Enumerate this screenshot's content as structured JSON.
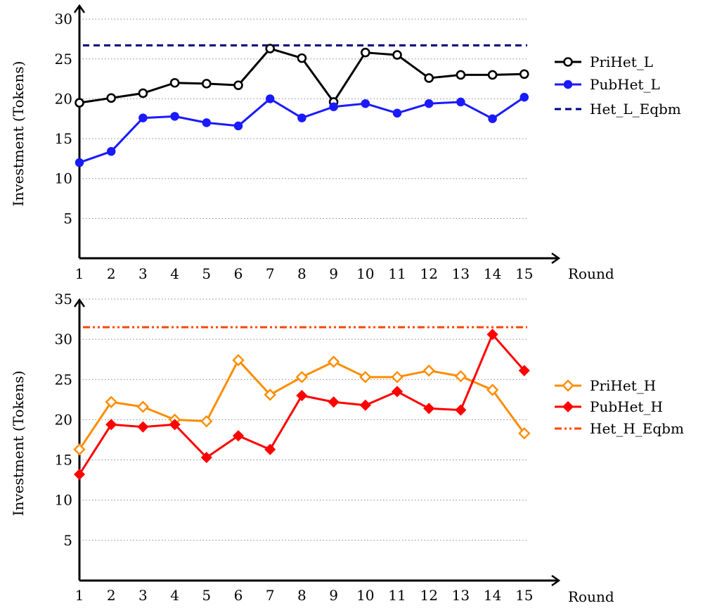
{
  "chart_data": [
    {
      "type": "line",
      "xlabel": "Round",
      "ylabel": "Investment (Tokens)",
      "x": [
        1,
        2,
        3,
        4,
        5,
        6,
        7,
        8,
        9,
        10,
        11,
        12,
        13,
        14,
        15
      ],
      "ylim": [
        0,
        30
      ],
      "yticks": [
        5,
        10,
        15,
        20,
        25,
        30
      ],
      "grid": "horizontal dotted",
      "legend_position": "right",
      "series": [
        {
          "name": "PriHet_L",
          "color": "#000000",
          "marker": "open-circle",
          "values": [
            19.5,
            20.1,
            20.7,
            22.0,
            21.9,
            21.7,
            26.3,
            25.1,
            19.6,
            25.8,
            25.5,
            22.6,
            23.0,
            23.0,
            23.1
          ]
        },
        {
          "name": "PubHet_L",
          "color": "#1a1aff",
          "marker": "filled-circle",
          "values": [
            12.0,
            13.4,
            17.6,
            17.8,
            17.0,
            16.6,
            20.0,
            17.6,
            19.0,
            19.4,
            18.2,
            19.4,
            19.6,
            17.5,
            20.2
          ]
        }
      ],
      "reference_lines": [
        {
          "name": "Het_L_Eqbm",
          "value": 26.7,
          "color": "#00007f",
          "style": "dashed"
        }
      ]
    },
    {
      "type": "line",
      "xlabel": "Round",
      "ylabel": "Investment (Tokens)",
      "x": [
        1,
        2,
        3,
        4,
        5,
        6,
        7,
        8,
        9,
        10,
        11,
        12,
        13,
        14,
        15
      ],
      "ylim": [
        0,
        35
      ],
      "yticks": [
        5,
        10,
        15,
        20,
        25,
        30,
        35
      ],
      "grid": "horizontal dotted",
      "legend_position": "right",
      "series": [
        {
          "name": "PriHet_H",
          "color": "#ff8c00",
          "marker": "open-diamond",
          "values": [
            16.3,
            22.2,
            21.6,
            20.0,
            19.8,
            27.4,
            23.1,
            25.3,
            27.2,
            25.3,
            25.3,
            26.1,
            25.4,
            23.7,
            18.3
          ]
        },
        {
          "name": "PubHet_H",
          "color": "#ff0000",
          "marker": "filled-diamond",
          "values": [
            13.2,
            19.4,
            19.1,
            19.4,
            15.3,
            18.0,
            16.3,
            23.0,
            22.2,
            21.8,
            23.5,
            21.4,
            21.2,
            30.6,
            26.1
          ]
        }
      ],
      "reference_lines": [
        {
          "name": "Het_H_Eqbm",
          "value": 31.5,
          "color": "#ff4500",
          "style": "dash-dot-dot"
        }
      ]
    }
  ]
}
